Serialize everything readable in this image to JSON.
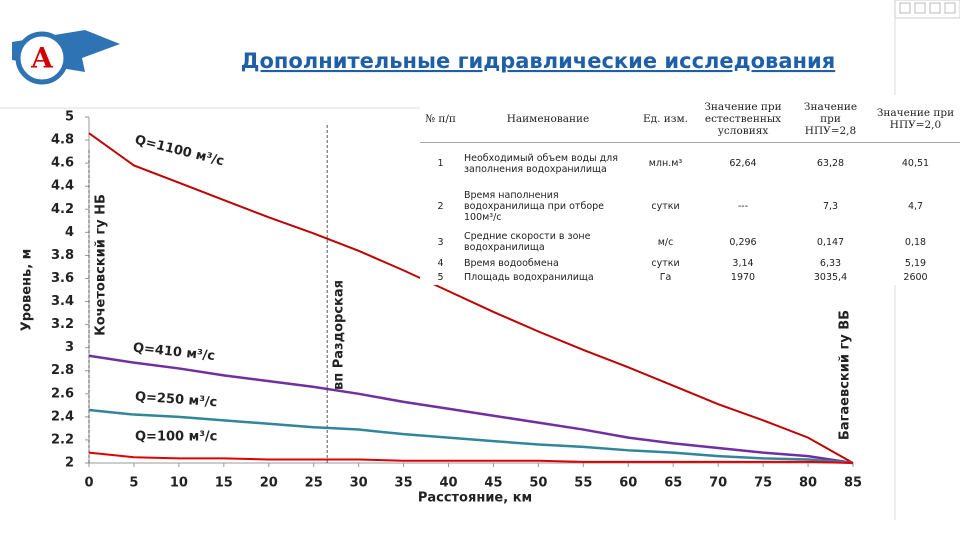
{
  "header": {
    "title": "Дополнительные гидравлические исследования"
  },
  "chart_data": {
    "type": "line",
    "x_label": "Расстояние, км",
    "y_label": "Уровень, м",
    "x": [
      0,
      5,
      10,
      15,
      20,
      25,
      30,
      35,
      40,
      45,
      50,
      55,
      60,
      65,
      70,
      75,
      80,
      85
    ],
    "series": [
      {
        "name": "Q=1100 м³/с",
        "color": "#c00000",
        "values": [
          4.86,
          4.58,
          4.43,
          4.28,
          4.13,
          3.99,
          3.84,
          3.67,
          3.49,
          3.31,
          3.14,
          2.98,
          2.83,
          2.67,
          2.51,
          2.37,
          2.22,
          2.0
        ]
      },
      {
        "name": "Q=410 м³/с",
        "color": "#7030a0",
        "values": [
          2.93,
          2.87,
          2.82,
          2.76,
          2.71,
          2.66,
          2.6,
          2.53,
          2.47,
          2.41,
          2.35,
          2.29,
          2.22,
          2.17,
          2.13,
          2.09,
          2.06,
          2.0
        ]
      },
      {
        "name": "Q=250 м³/с",
        "color": "#31859c",
        "values": [
          2.46,
          2.42,
          2.4,
          2.37,
          2.34,
          2.31,
          2.29,
          2.25,
          2.22,
          2.19,
          2.16,
          2.14,
          2.11,
          2.09,
          2.06,
          2.04,
          2.03,
          2.0
        ]
      },
      {
        "name": "Q=100 м³/с",
        "color": "#e00000",
        "values": [
          2.09,
          2.05,
          2.04,
          2.04,
          2.03,
          2.03,
          2.03,
          2.02,
          2.02,
          2.02,
          2.02,
          2.01,
          2.01,
          2.01,
          2.01,
          2.01,
          2.01,
          2.0
        ]
      }
    ],
    "xlim": [
      0,
      85
    ],
    "ylim": [
      2,
      5
    ],
    "xticks": [
      0,
      5,
      10,
      15,
      20,
      25,
      30,
      35,
      40,
      45,
      50,
      55,
      60,
      65,
      70,
      75,
      80,
      85
    ],
    "yticks": [
      2,
      2.2,
      2.4,
      2.6,
      2.8,
      3,
      3.2,
      3.4,
      3.6,
      3.8,
      4,
      4.2,
      4.4,
      4.6,
      4.8,
      5
    ],
    "annotations": [
      {
        "text": "Кочетовский гу НБ",
        "x": 0
      },
      {
        "text": "вп Раздорская",
        "x": 26.5
      },
      {
        "text": "Багаевский гу ВБ",
        "x": 85
      }
    ]
  },
  "table": {
    "header": [
      "№ п/п",
      "Наименование",
      "Ед. изм.",
      "Значение при естественных условиях",
      "Значение при НПУ=2,8",
      "Значение при НПУ=2,0"
    ],
    "rows": [
      [
        "1",
        "Необходимый объем воды для заполнения водохранилища",
        "млн.м³",
        "62,64",
        "63,28",
        "40,51"
      ],
      [
        "2",
        "Время наполнения водохранилища при отборе 100м³/с",
        "сутки",
        "---",
        "7,3",
        "4,7"
      ],
      [
        "3",
        "Средние скорости в зоне водохранилища",
        "м/с",
        "0,296",
        "0,147",
        "0,18"
      ],
      [
        "4",
        "Время водообмена",
        "сутки",
        "3,14",
        "6,33",
        "5,19"
      ],
      [
        "5",
        "Площадь водохранилища",
        "Га",
        "1970",
        "3035,4",
        "2600"
      ]
    ]
  }
}
